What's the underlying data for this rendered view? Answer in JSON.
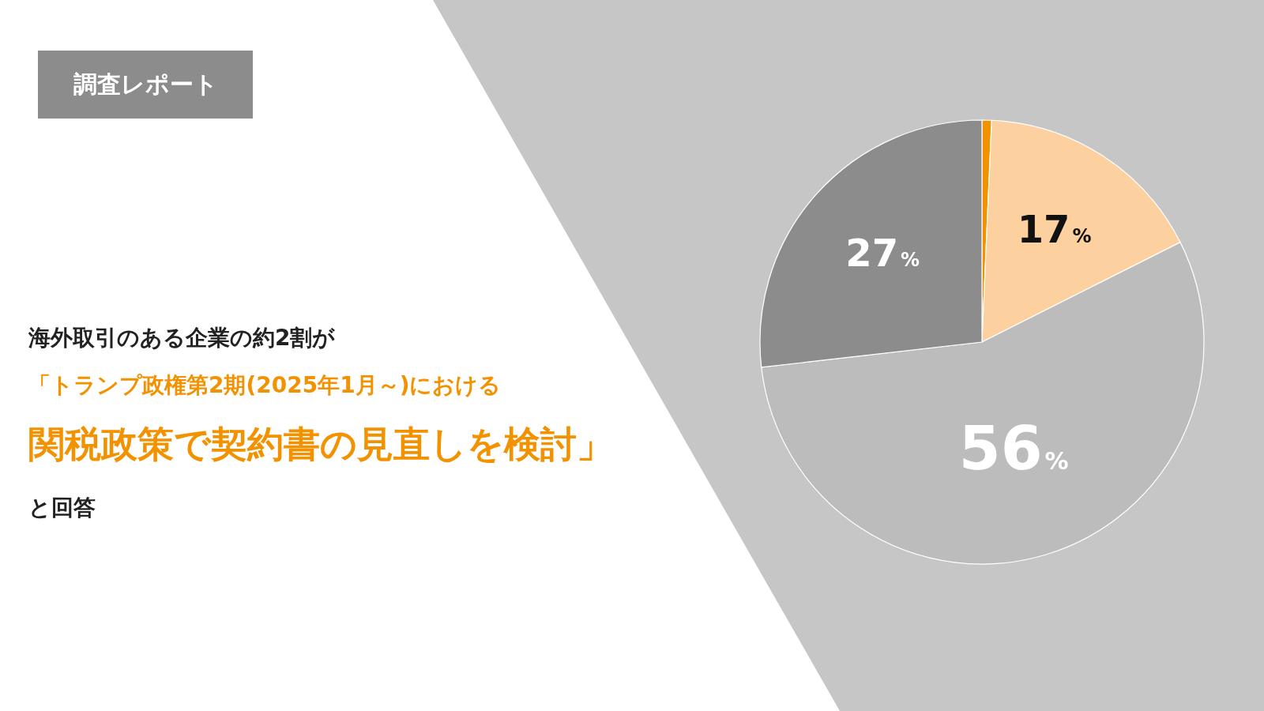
{
  "chart_data": {
    "type": "pie",
    "title": "調査レポート",
    "categories": [
      null,
      null,
      null,
      null
    ],
    "values": [
      0.7,
      17,
      56,
      27
    ],
    "colors": [
      "#f39200",
      "#fdd0a0",
      "#bcbcbc",
      "#8c8c8c"
    ],
    "value_labels": [
      null,
      "17%",
      "56%",
      "27%"
    ],
    "annotations": [
      "海外取引のある企業の約2割が",
      "「トランプ政権第2期(2025年1月～)における",
      "関税政策で契約書の見直しを検討」",
      "と回答"
    ]
  }
}
